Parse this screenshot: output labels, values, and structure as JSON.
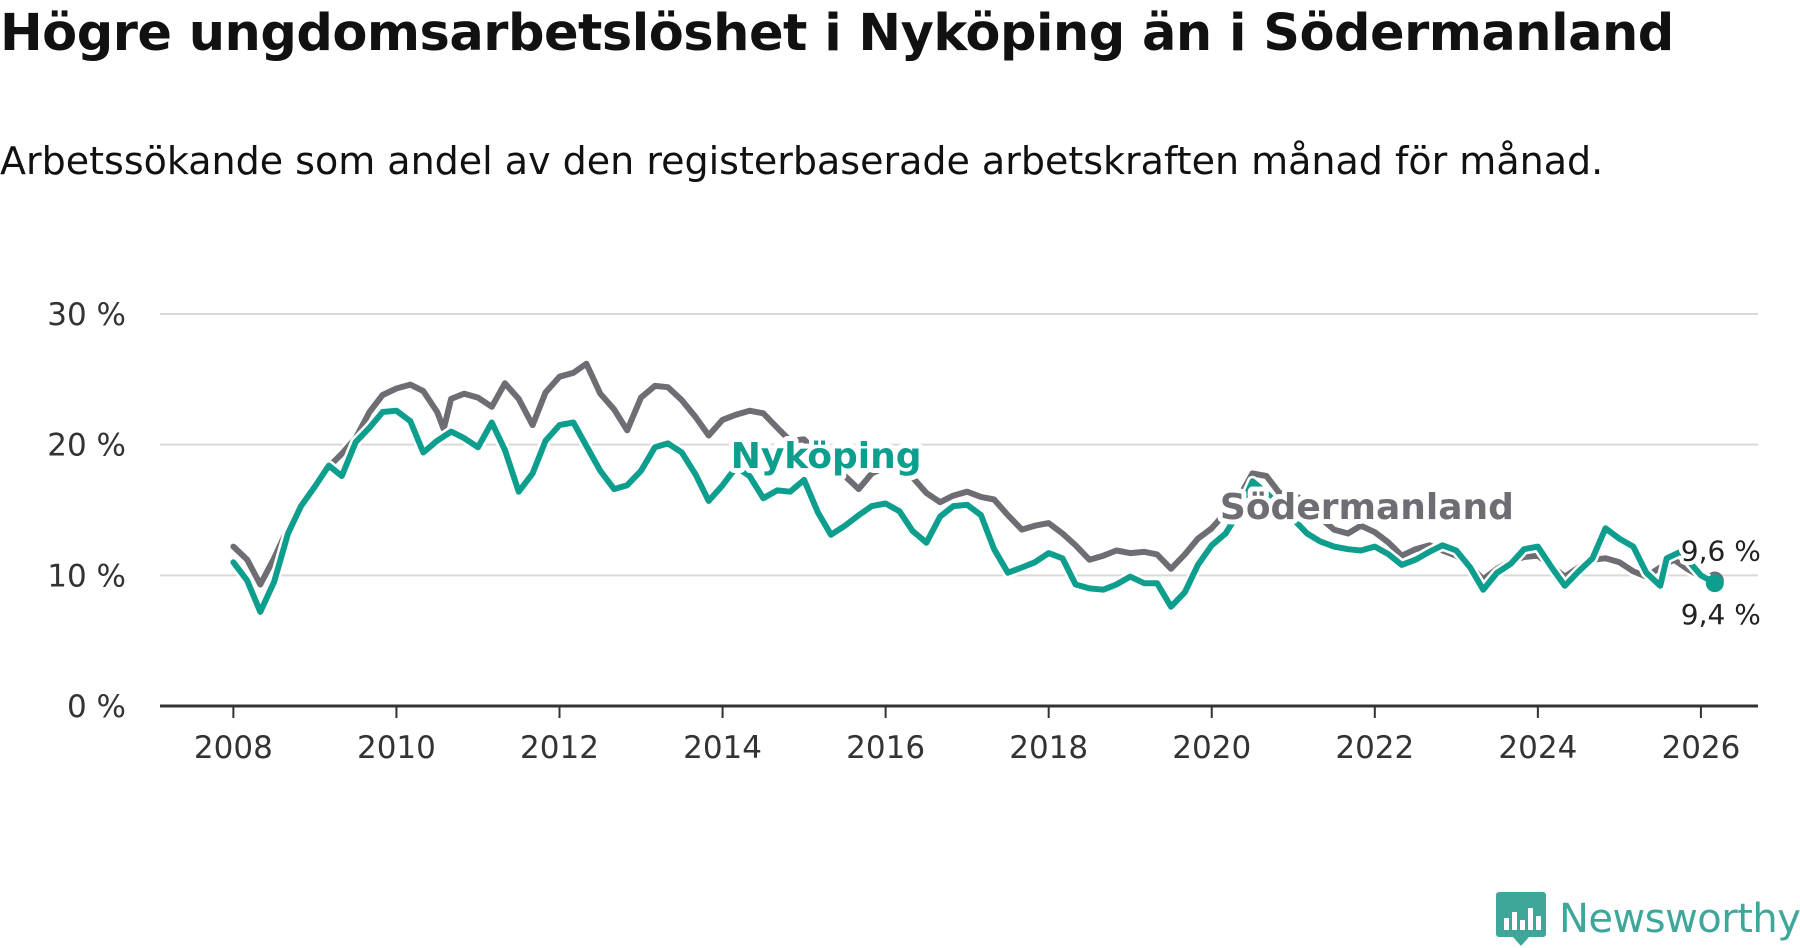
{
  "title": "Högre ungdomsarbetslöshet i Nyköping än i Södermanland",
  "subtitle": "Arbetssökande som andel av den registerbaserade arbetskraften månad för månad.",
  "brand": {
    "name": "Newsworthy",
    "color": "#3fa79a"
  },
  "colors": {
    "nykoping": "#0e9e8e",
    "sodermanland": "#6e6d73",
    "grid": "#d9d9d9",
    "axis": "#333333"
  },
  "chart_data": {
    "type": "line",
    "title": "Högre ungdomsarbetslöshet i Nyköping än i Södermanland",
    "xlabel": "",
    "ylabel": "",
    "ylim": [
      0,
      30
    ],
    "xlim": [
      2007.1,
      2026.7
    ],
    "y_ticks": [
      0,
      10,
      20,
      30
    ],
    "y_tick_labels": [
      "0 %",
      "10 %",
      "20 %",
      "30 %"
    ],
    "x_ticks": [
      2008,
      2010,
      2012,
      2014,
      2016,
      2018,
      2020,
      2022,
      2024,
      2026
    ],
    "x_tick_labels": [
      "2008",
      "2010",
      "2012",
      "2014",
      "2016",
      "2018",
      "2020",
      "2022",
      "2024",
      "2026"
    ],
    "grid": true,
    "series": [
      {
        "name": "Södermanland",
        "label": "Södermanland",
        "end_label": "9,6 %",
        "color": "#6e6d73",
        "points": [
          [
            2008.0,
            12.2
          ],
          [
            2008.17,
            11.2
          ],
          [
            2008.33,
            9.3
          ],
          [
            2008.5,
            11.3
          ],
          [
            2008.67,
            13.6
          ],
          [
            2008.83,
            15.2
          ],
          [
            2009.0,
            17.0
          ],
          [
            2009.17,
            18.3
          ],
          [
            2009.33,
            19.3
          ],
          [
            2009.5,
            20.5
          ],
          [
            2009.67,
            22.5
          ],
          [
            2009.83,
            23.8
          ],
          [
            2010.0,
            24.3
          ],
          [
            2010.17,
            24.6
          ],
          [
            2010.33,
            24.1
          ],
          [
            2010.5,
            22.5
          ],
          [
            2010.58,
            21.2
          ],
          [
            2010.67,
            23.5
          ],
          [
            2010.83,
            23.9
          ],
          [
            2011.0,
            23.6
          ],
          [
            2011.17,
            22.9
          ],
          [
            2011.33,
            24.7
          ],
          [
            2011.5,
            23.5
          ],
          [
            2011.67,
            21.5
          ],
          [
            2011.83,
            24.0
          ],
          [
            2012.0,
            25.2
          ],
          [
            2012.17,
            25.5
          ],
          [
            2012.33,
            26.2
          ],
          [
            2012.5,
            23.9
          ],
          [
            2012.67,
            22.7
          ],
          [
            2012.83,
            21.1
          ],
          [
            2013.0,
            23.6
          ],
          [
            2013.17,
            24.5
          ],
          [
            2013.33,
            24.4
          ],
          [
            2013.5,
            23.4
          ],
          [
            2013.67,
            22.1
          ],
          [
            2013.83,
            20.7
          ],
          [
            2014.0,
            21.9
          ],
          [
            2014.17,
            22.3
          ],
          [
            2014.33,
            22.6
          ],
          [
            2014.5,
            22.4
          ],
          [
            2014.67,
            21.3
          ],
          [
            2014.83,
            20.3
          ],
          [
            2015.0,
            20.4
          ],
          [
            2015.17,
            19.3
          ],
          [
            2015.33,
            18.6
          ],
          [
            2015.5,
            17.6
          ],
          [
            2015.67,
            16.6
          ],
          [
            2015.83,
            17.8
          ],
          [
            2016.0,
            18.3
          ],
          [
            2016.17,
            18.0
          ],
          [
            2016.33,
            17.5
          ],
          [
            2016.5,
            16.3
          ],
          [
            2016.67,
            15.6
          ],
          [
            2016.83,
            16.1
          ],
          [
            2017.0,
            16.4
          ],
          [
            2017.17,
            16.0
          ],
          [
            2017.33,
            15.8
          ],
          [
            2017.5,
            14.6
          ],
          [
            2017.67,
            13.5
          ],
          [
            2017.83,
            13.8
          ],
          [
            2018.0,
            14.0
          ],
          [
            2018.17,
            13.2
          ],
          [
            2018.33,
            12.3
          ],
          [
            2018.5,
            11.2
          ],
          [
            2018.67,
            11.5
          ],
          [
            2018.83,
            11.9
          ],
          [
            2019.0,
            11.7
          ],
          [
            2019.17,
            11.8
          ],
          [
            2019.33,
            11.6
          ],
          [
            2019.5,
            10.5
          ],
          [
            2019.67,
            11.6
          ],
          [
            2019.83,
            12.8
          ],
          [
            2020.0,
            13.6
          ],
          [
            2020.17,
            14.8
          ],
          [
            2020.33,
            15.9
          ],
          [
            2020.5,
            17.8
          ],
          [
            2020.67,
            17.6
          ],
          [
            2020.83,
            16.3
          ],
          [
            2021.0,
            16.2
          ],
          [
            2021.17,
            15.5
          ],
          [
            2021.33,
            14.4
          ],
          [
            2021.5,
            13.5
          ],
          [
            2021.67,
            13.2
          ],
          [
            2021.83,
            13.8
          ],
          [
            2022.0,
            13.3
          ],
          [
            2022.17,
            12.5
          ],
          [
            2022.33,
            11.5
          ],
          [
            2022.5,
            12.0
          ],
          [
            2022.67,
            12.3
          ],
          [
            2022.83,
            11.9
          ],
          [
            2023.0,
            11.5
          ],
          [
            2023.17,
            10.7
          ],
          [
            2023.33,
            9.7
          ],
          [
            2023.5,
            10.5
          ],
          [
            2023.67,
            11.1
          ],
          [
            2023.83,
            11.4
          ],
          [
            2024.0,
            11.5
          ],
          [
            2024.17,
            10.7
          ],
          [
            2024.33,
            9.9
          ],
          [
            2024.5,
            10.6
          ],
          [
            2024.67,
            11.2
          ],
          [
            2024.83,
            11.3
          ],
          [
            2025.0,
            11.0
          ],
          [
            2025.17,
            10.3
          ],
          [
            2025.33,
            9.9
          ],
          [
            2025.5,
            10.6
          ],
          [
            2025.67,
            11.2
          ],
          [
            2025.83,
            10.5
          ],
          [
            2026.0,
            9.9
          ],
          [
            2026.17,
            9.6
          ]
        ]
      },
      {
        "name": "Nyköping",
        "label": "Nyköping",
        "end_label": "9,4 %",
        "color": "#0e9e8e",
        "points": [
          [
            2008.0,
            11.0
          ],
          [
            2008.17,
            9.6
          ],
          [
            2008.33,
            7.2
          ],
          [
            2008.5,
            9.5
          ],
          [
            2008.67,
            13.2
          ],
          [
            2008.83,
            15.3
          ],
          [
            2009.0,
            16.8
          ],
          [
            2009.17,
            18.4
          ],
          [
            2009.33,
            17.6
          ],
          [
            2009.5,
            20.2
          ],
          [
            2009.67,
            21.3
          ],
          [
            2009.83,
            22.5
          ],
          [
            2010.0,
            22.6
          ],
          [
            2010.17,
            21.8
          ],
          [
            2010.33,
            19.4
          ],
          [
            2010.5,
            20.3
          ],
          [
            2010.67,
            21.0
          ],
          [
            2010.83,
            20.5
          ],
          [
            2011.0,
            19.8
          ],
          [
            2011.17,
            21.7
          ],
          [
            2011.33,
            19.6
          ],
          [
            2011.5,
            16.4
          ],
          [
            2011.67,
            17.8
          ],
          [
            2011.83,
            20.3
          ],
          [
            2012.0,
            21.5
          ],
          [
            2012.17,
            21.7
          ],
          [
            2012.33,
            19.9
          ],
          [
            2012.5,
            18.0
          ],
          [
            2012.67,
            16.6
          ],
          [
            2012.83,
            16.9
          ],
          [
            2013.0,
            18.0
          ],
          [
            2013.17,
            19.8
          ],
          [
            2013.33,
            20.1
          ],
          [
            2013.5,
            19.4
          ],
          [
            2013.67,
            17.7
          ],
          [
            2013.83,
            15.7
          ],
          [
            2014.0,
            16.9
          ],
          [
            2014.17,
            18.3
          ],
          [
            2014.33,
            17.6
          ],
          [
            2014.5,
            15.9
          ],
          [
            2014.67,
            16.5
          ],
          [
            2014.83,
            16.4
          ],
          [
            2015.0,
            17.3
          ],
          [
            2015.17,
            14.8
          ],
          [
            2015.33,
            13.1
          ],
          [
            2015.5,
            13.8
          ],
          [
            2015.67,
            14.6
          ],
          [
            2015.83,
            15.3
          ],
          [
            2016.0,
            15.5
          ],
          [
            2016.17,
            14.9
          ],
          [
            2016.33,
            13.4
          ],
          [
            2016.5,
            12.5
          ],
          [
            2016.67,
            14.5
          ],
          [
            2016.83,
            15.3
          ],
          [
            2017.0,
            15.4
          ],
          [
            2017.17,
            14.6
          ],
          [
            2017.33,
            12.0
          ],
          [
            2017.5,
            10.2
          ],
          [
            2017.67,
            10.6
          ],
          [
            2017.83,
            11.0
          ],
          [
            2018.0,
            11.7
          ],
          [
            2018.17,
            11.3
          ],
          [
            2018.33,
            9.3
          ],
          [
            2018.5,
            9.0
          ],
          [
            2018.67,
            8.9
          ],
          [
            2018.83,
            9.3
          ],
          [
            2019.0,
            9.9
          ],
          [
            2019.17,
            9.4
          ],
          [
            2019.33,
            9.4
          ],
          [
            2019.5,
            7.6
          ],
          [
            2019.67,
            8.7
          ],
          [
            2019.83,
            10.8
          ],
          [
            2020.0,
            12.3
          ],
          [
            2020.17,
            13.2
          ],
          [
            2020.33,
            14.8
          ],
          [
            2020.5,
            17.2
          ],
          [
            2020.67,
            16.3
          ],
          [
            2020.83,
            15.3
          ],
          [
            2021.0,
            14.3
          ],
          [
            2021.17,
            13.2
          ],
          [
            2021.33,
            12.6
          ],
          [
            2021.5,
            12.2
          ],
          [
            2021.67,
            12.0
          ],
          [
            2021.83,
            11.9
          ],
          [
            2022.0,
            12.2
          ],
          [
            2022.17,
            11.6
          ],
          [
            2022.33,
            10.8
          ],
          [
            2022.5,
            11.2
          ],
          [
            2022.67,
            11.8
          ],
          [
            2022.83,
            12.3
          ],
          [
            2023.0,
            11.9
          ],
          [
            2023.17,
            10.6
          ],
          [
            2023.33,
            8.9
          ],
          [
            2023.5,
            10.2
          ],
          [
            2023.67,
            10.9
          ],
          [
            2023.83,
            12.0
          ],
          [
            2024.0,
            12.2
          ],
          [
            2024.17,
            10.6
          ],
          [
            2024.33,
            9.2
          ],
          [
            2024.5,
            10.3
          ],
          [
            2024.67,
            11.3
          ],
          [
            2024.83,
            13.6
          ],
          [
            2025.0,
            12.8
          ],
          [
            2025.17,
            12.2
          ],
          [
            2025.33,
            10.2
          ],
          [
            2025.5,
            9.2
          ],
          [
            2025.58,
            11.3
          ],
          [
            2025.75,
            11.8
          ],
          [
            2026.0,
            10.0
          ],
          [
            2026.17,
            9.4
          ]
        ]
      }
    ],
    "annotations": [
      {
        "text": "Nyköping",
        "series": "Nyköping",
        "anchor": [
          2014.1,
          18.2
        ]
      },
      {
        "text": "Södermanland",
        "series": "Södermanland",
        "anchor": [
          2020.1,
          14.3
        ]
      }
    ]
  }
}
